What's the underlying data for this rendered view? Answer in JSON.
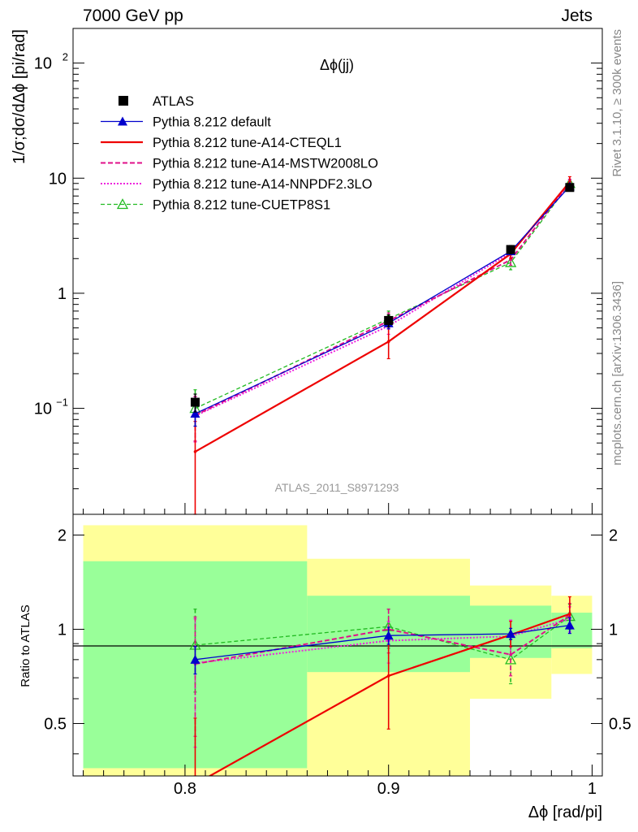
{
  "header": {
    "left": "7000 GeV pp",
    "right": "Jets",
    "side_top": "Rivet 3.1.10, ≥ 300k events",
    "side_bottom": "mcplots.cern.ch [arXiv:1306.3436]"
  },
  "colors": {
    "atlas": "#000000",
    "default": "#0000cc",
    "cteql1": "#ee0000",
    "mstw": "#e0108a",
    "nnpdf": "#ee22dd",
    "cuetp": "#22bb22",
    "band_inner": "#99ff99",
    "band_outer": "#ffff99"
  },
  "chart_data": [
    {
      "type": "line",
      "panel": "main",
      "title": "Δϕ(jj)",
      "ylabel": "1/σ;dσ/dΔϕ [pi/rad]",
      "yscale": "log",
      "ylim": [
        0.012,
        200
      ],
      "xlim": [
        0.745,
        1.005
      ],
      "y_ticks": [
        {
          "value": 0.1,
          "label": "10",
          "sup": "−1"
        },
        {
          "value": 1,
          "label": "1",
          "sup": ""
        },
        {
          "value": 10,
          "label": "10",
          "sup": ""
        },
        {
          "value": 100,
          "label": "10",
          "sup": "2"
        }
      ],
      "watermark": "ATLAS_2011_S8971293",
      "legend_position": "top-left",
      "x": [
        0.805,
        0.9,
        0.96,
        0.989
      ],
      "series": [
        {
          "key": "atlas",
          "name": "ATLAS",
          "values": [
            0.113,
            0.58,
            2.4,
            8.3
          ],
          "err_low": [
            0.02,
            0.07,
            0.2,
            0.6
          ],
          "err_high": [
            0.02,
            0.07,
            0.2,
            0.6
          ]
        },
        {
          "key": "default",
          "name": "Pythia 8.212 default",
          "values": [
            0.09,
            0.55,
            2.32,
            8.5
          ],
          "err_low": [
            0.02,
            0.06,
            0.15,
            0.4
          ],
          "err_high": [
            0.02,
            0.06,
            0.15,
            0.4
          ]
        },
        {
          "key": "cteql1",
          "name": "Pythia 8.212 tune-A14-CTEQL1",
          "values": [
            0.042,
            0.38,
            2.2,
            9.3
          ],
          "err_low": [
            0.031,
            0.11,
            0.2,
            0.6
          ],
          "err_high": [
            0.035,
            0.14,
            0.2,
            1.0
          ]
        },
        {
          "key": "mstw",
          "name": "Pythia 8.212 tune-A14-MSTW2008LO",
          "values": [
            0.087,
            0.575,
            1.95,
            9.2
          ],
          "err_low": [
            0.035,
            0.08,
            0.2,
            0.5
          ],
          "err_high": [
            0.04,
            0.1,
            0.2,
            0.6
          ]
        },
        {
          "key": "nnpdf",
          "name": "Pythia 8.212 tune-A14-NNPDF2.3LO",
          "values": [
            0.086,
            0.52,
            2.25,
            9.0
          ],
          "err_low": [
            0.035,
            0.08,
            0.2,
            0.5
          ],
          "err_high": [
            0.04,
            0.1,
            0.2,
            0.6
          ]
        },
        {
          "key": "cuetp",
          "name": "Pythia 8.212 tune-CUETP8S1",
          "values": [
            0.1,
            0.6,
            1.85,
            9.0
          ],
          "err_low": [
            0.03,
            0.08,
            0.25,
            0.6
          ],
          "err_high": [
            0.045,
            0.1,
            0.3,
            0.7
          ]
        }
      ]
    },
    {
      "type": "line",
      "panel": "ratio",
      "ylabel": "Ratio to ATLAS",
      "xlabel": "Δϕ [rad/pi]",
      "ylim": [
        0.34,
        2.33
      ],
      "xlim": [
        0.745,
        1.005
      ],
      "y_ticks": [
        0.5,
        1,
        2
      ],
      "x_ticks": [
        0.8,
        0.9,
        1
      ],
      "x_tick_labels": [
        "0.8",
        "0.9",
        "1"
      ],
      "bands": [
        {
          "x0": 0.75,
          "x1": 0.86,
          "inner": [
            0.36,
            1.65
          ],
          "outer": [
            0.34,
            2.15
          ]
        },
        {
          "x0": 0.86,
          "x1": 0.94,
          "inner": [
            0.73,
            1.28
          ],
          "outer": [
            0.34,
            1.68
          ]
        },
        {
          "x0": 0.94,
          "x1": 0.98,
          "inner": [
            0.81,
            1.19
          ],
          "outer": [
            0.6,
            1.38
          ]
        },
        {
          "x0": 0.98,
          "x1": 1.0,
          "inner": [
            0.87,
            1.13
          ],
          "outer": [
            0.72,
            1.28
          ]
        }
      ],
      "x": [
        0.805,
        0.9,
        0.96,
        0.989
      ],
      "series": [
        {
          "key": "default",
          "values": [
            0.8,
            0.955,
            0.967,
            1.03
          ],
          "err_low": [
            0.08,
            0.06,
            0.04,
            0.06
          ],
          "err_high": [
            0.08,
            0.06,
            0.04,
            0.06
          ]
        },
        {
          "key": "cteql1",
          "values": [
            0.32,
            0.71,
            0.96,
            1.12
          ],
          "err_low": [
            0.2,
            0.23,
            0.08,
            0.1
          ],
          "err_high": [
            0.2,
            0.22,
            0.1,
            0.15
          ]
        },
        {
          "key": "mstw",
          "values": [
            0.775,
            1.0,
            0.83,
            1.11
          ],
          "err_low": [
            0.32,
            0.16,
            0.12,
            0.1
          ],
          "err_high": [
            0.32,
            0.16,
            0.12,
            0.1
          ]
        },
        {
          "key": "nnpdf",
          "values": [
            0.78,
            0.92,
            0.95,
            1.08
          ],
          "err_low": [
            0.36,
            0.14,
            0.12,
            0.1
          ],
          "err_high": [
            0.3,
            0.14,
            0.12,
            0.1
          ]
        },
        {
          "key": "cuetp",
          "values": [
            0.89,
            1.02,
            0.8,
            1.1
          ],
          "err_low": [
            0.26,
            0.15,
            0.13,
            0.1
          ],
          "err_high": [
            0.27,
            0.14,
            0.13,
            0.1
          ]
        }
      ]
    }
  ]
}
